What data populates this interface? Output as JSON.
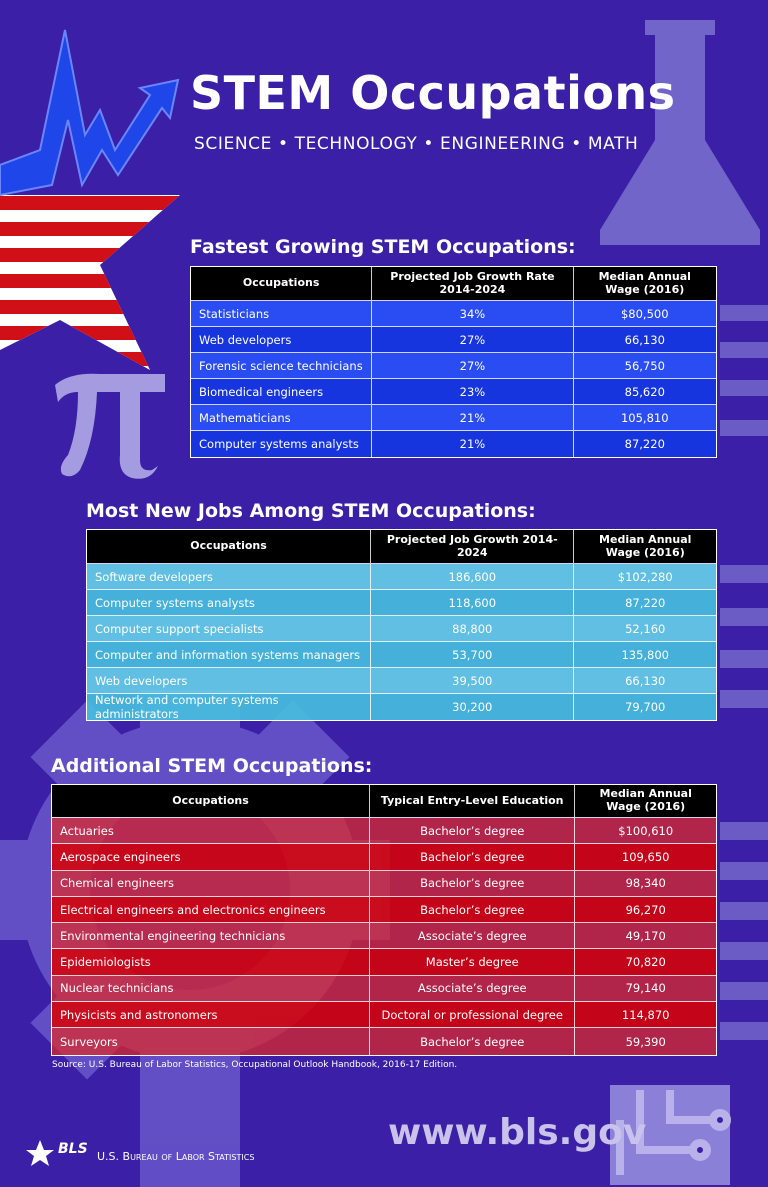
{
  "header": {
    "title": "STEM Occupations",
    "subtitle": "SCIENCE • TECHNOLOGY • ENGINEERING • MATH"
  },
  "tables": [
    {
      "heading": "Fastest Growing STEM Occupations:",
      "columns": [
        "Occupations",
        "Projected Job Growth Rate 2014-2024",
        "Median Annual Wage (2016)"
      ],
      "rows": [
        [
          "Statisticians",
          "34%",
          "$80,500"
        ],
        [
          "Web developers",
          "27%",
          "66,130"
        ],
        [
          "Forensic science technicians",
          "27%",
          "56,750"
        ],
        [
          "Biomedical engineers",
          "23%",
          "85,620"
        ],
        [
          "Mathematicians",
          "21%",
          "105,810"
        ],
        [
          "Computer systems analysts",
          "21%",
          "87,220"
        ]
      ]
    },
    {
      "heading": "Most New Jobs Among STEM Occupations:",
      "columns": [
        "Occupations",
        "Projected Job Growth 2014-2024",
        "Median Annual Wage (2016)"
      ],
      "rows": [
        [
          "Software developers",
          "186,600",
          "$102,280"
        ],
        [
          "Computer systems analysts",
          "118,600",
          "87,220"
        ],
        [
          "Computer support specialists",
          "88,800",
          "52,160"
        ],
        [
          "Computer and information systems managers",
          "53,700",
          "135,800"
        ],
        [
          "Web developers",
          "39,500",
          "66,130"
        ],
        [
          "Network and computer systems administrators",
          "30,200",
          "79,700"
        ]
      ]
    },
    {
      "heading": "Additional STEM Occupations:",
      "columns": [
        "Occupations",
        "Typical Entry-Level Education",
        "Median Annual Wage (2016)"
      ],
      "rows": [
        [
          "Actuaries",
          "Bachelor’s degree",
          "$100,610"
        ],
        [
          "Aerospace engineers",
          "Bachelor’s degree",
          "109,650"
        ],
        [
          "Chemical engineers",
          "Bachelor’s degree",
          "98,340"
        ],
        [
          "Electrical engineers and electronics engineers",
          "Bachelor’s degree",
          "96,270"
        ],
        [
          "Environmental engineering technicians",
          "Associate’s degree",
          "49,170"
        ],
        [
          "Epidemiologists",
          "Master’s degree",
          "70,820"
        ],
        [
          "Nuclear technicians",
          "Associate’s degree",
          "79,140"
        ],
        [
          "Physicists and astronomers",
          "Doctoral or professional degree",
          "114,870"
        ],
        [
          "Surveyors",
          "Bachelor’s degree",
          "59,390"
        ]
      ]
    }
  ],
  "source": "Source: U.S. Bureau of Labor Statistics, Occupational Outlook Handbook, 2016-17 Edition.",
  "footer": {
    "logo": "BLS",
    "agency": "U.S. Bureau of Labor Statistics",
    "url": "www.bls.gov"
  }
}
